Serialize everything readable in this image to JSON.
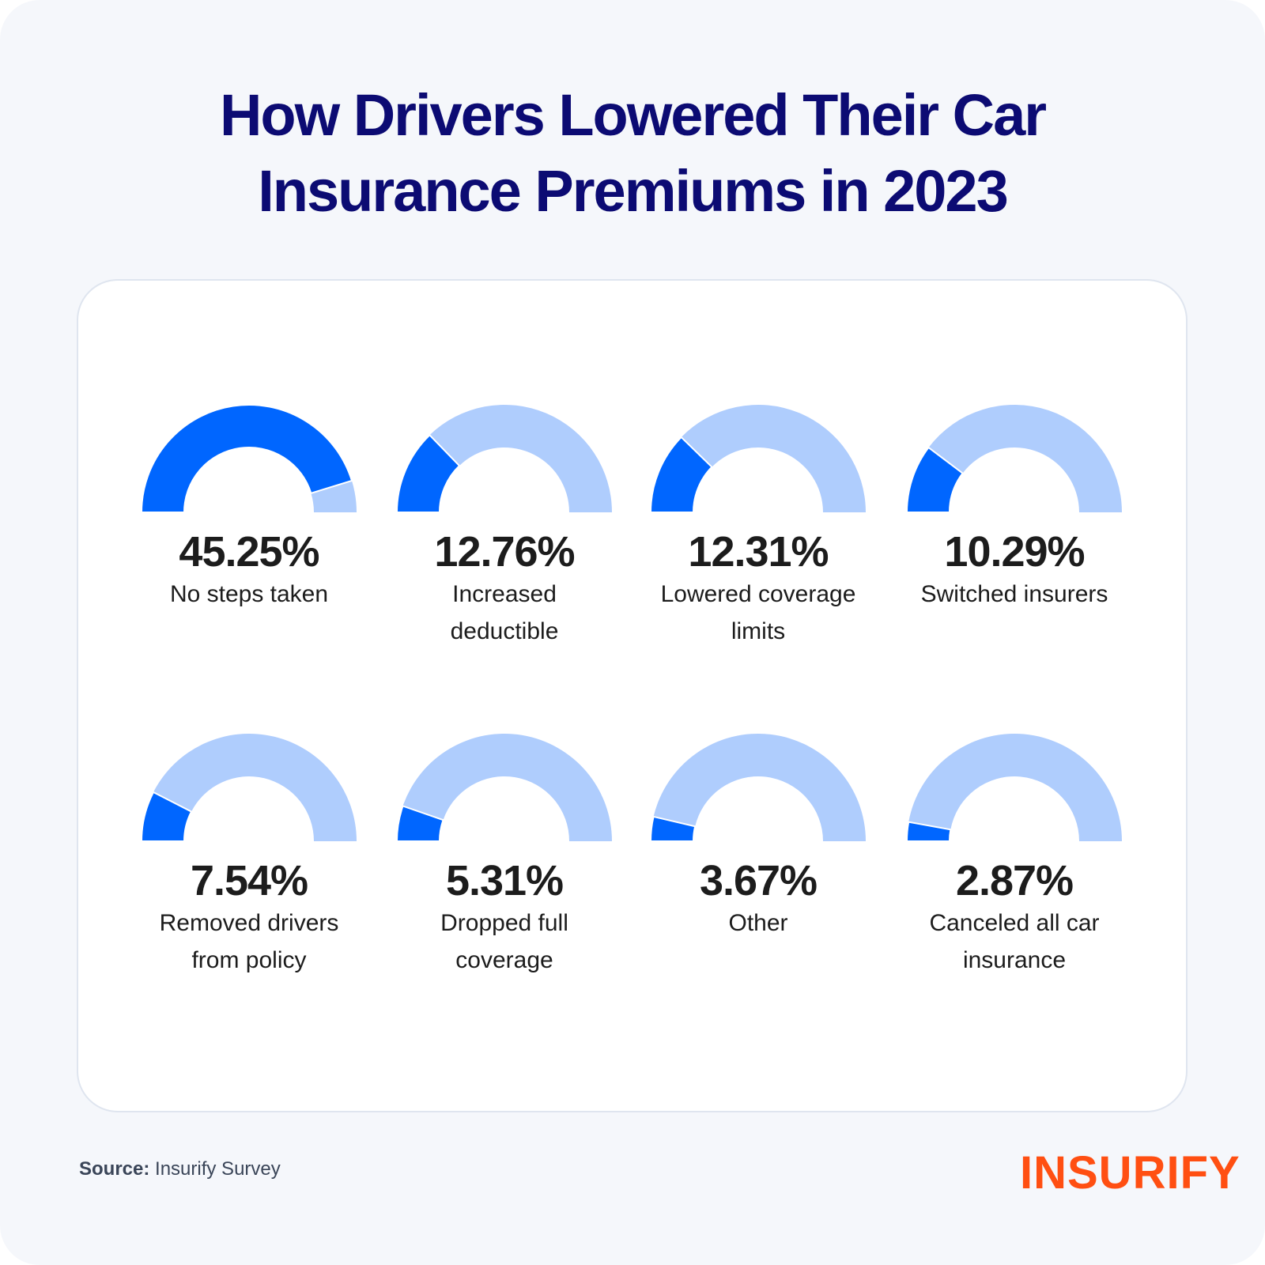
{
  "title_lines": [
    "How Drivers Lowered Their  Car",
    "Insurance Premiums in 2023"
  ],
  "source_label": "Source:",
  "source_text": "Insurify Survey",
  "logo": "INSURIFY",
  "colors": {
    "filled": "#0066ff",
    "remainder": "#afcdfd",
    "title": "#0c0b73",
    "logo": "#ff4f12"
  },
  "chart_data": {
    "type": "gauge",
    "scale_max_percent": 50,
    "items": [
      {
        "value": 45.25,
        "value_label": "45.25%",
        "label": "No steps taken"
      },
      {
        "value": 12.76,
        "value_label": "12.76%",
        "label": "Increased deductible"
      },
      {
        "value": 12.31,
        "value_label": "12.31%",
        "label": "Lowered coverage limits"
      },
      {
        "value": 10.29,
        "value_label": "10.29%",
        "label": "Switched insurers"
      },
      {
        "value": 7.54,
        "value_label": "7.54%",
        "label": "Removed drivers from policy"
      },
      {
        "value": 5.31,
        "value_label": "5.31%",
        "label": "Dropped full coverage"
      },
      {
        "value": 3.67,
        "value_label": "3.67%",
        "label": "Other"
      },
      {
        "value": 2.87,
        "value_label": "2.87%",
        "label": "Canceled all car insurance"
      }
    ]
  }
}
